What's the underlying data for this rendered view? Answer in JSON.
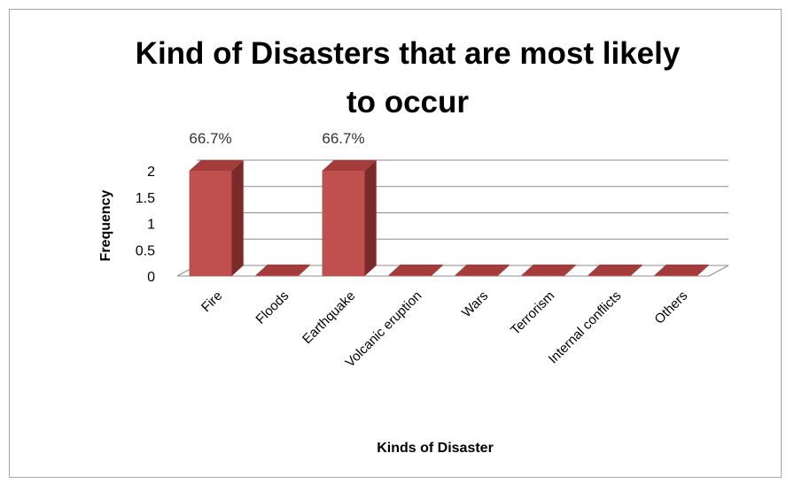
{
  "chart_data": {
    "type": "bar",
    "title_line1": "Kind of Disasters that are most likely",
    "title_line2": "to occur",
    "xlabel": "Kinds of Disaster",
    "ylabel": "Frequency",
    "categories": [
      "Fire",
      "Floods",
      "Earthquake",
      "Volcanic eruption",
      "Wars",
      "Terrorism",
      "Internal conflicts",
      "Others"
    ],
    "values": [
      2,
      0,
      2,
      0,
      0,
      0,
      0,
      0
    ],
    "data_labels": [
      "66.7%",
      "",
      "66.7%",
      "",
      "",
      "",
      "",
      ""
    ],
    "ylim": [
      0,
      2
    ],
    "yticks": [
      "0",
      "0.5",
      "1",
      "1.5",
      "2"
    ],
    "grid": true,
    "legend": "none",
    "bar_color": "#c0504d"
  }
}
